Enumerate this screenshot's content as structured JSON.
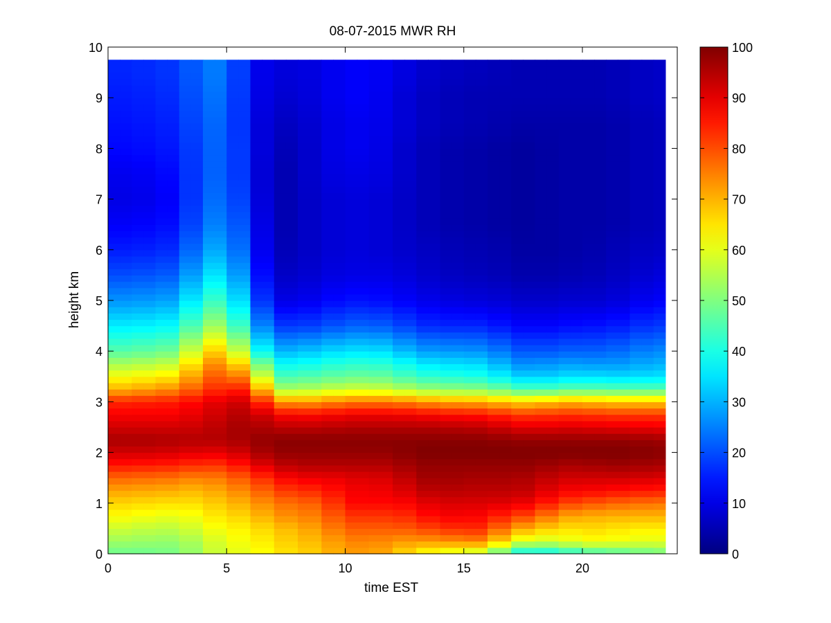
{
  "chart_data": {
    "type": "heatmap",
    "title": "08-07-2015 MWR RH",
    "xlabel": "time EST",
    "ylabel": "height km",
    "xlim": [
      0,
      24
    ],
    "ylim": [
      0,
      10
    ],
    "x_ticks": [
      "0",
      "5",
      "10",
      "15",
      "20"
    ],
    "y_ticks": [
      "0",
      "1",
      "2",
      "3",
      "4",
      "5",
      "6",
      "7",
      "8",
      "9",
      "10"
    ],
    "colorbar": {
      "colormap": "jet",
      "range": [
        0,
        100
      ],
      "ticks": [
        "0",
        "10",
        "20",
        "30",
        "40",
        "50",
        "60",
        "70",
        "80",
        "90",
        "100"
      ]
    },
    "data_extent": {
      "x": [
        0,
        23.5
      ],
      "y": [
        0,
        9.75
      ]
    },
    "time_hours": [
      0,
      1,
      2,
      3,
      4,
      5,
      6,
      7,
      8,
      9,
      10,
      11,
      12,
      13,
      14,
      15,
      16,
      17,
      18,
      19,
      20,
      21,
      22,
      23
    ],
    "height_km": [
      0,
      0.25,
      0.5,
      0.75,
      1,
      1.25,
      1.5,
      1.75,
      2,
      2.25,
      2.5,
      2.75,
      3,
      3.25,
      3.5,
      3.75,
      4,
      4.5,
      5,
      5.5,
      6,
      6.5,
      7,
      7.5,
      8,
      8.5,
      9,
      9.5,
      9.75
    ],
    "rh_profiles": [
      [
        48,
        53,
        58,
        63,
        67,
        72,
        78,
        86,
        92,
        96,
        92,
        88,
        84,
        70,
        62,
        54,
        46,
        36,
        27,
        20,
        15,
        12,
        10,
        11,
        13,
        14,
        15,
        16,
        16
      ],
      [
        48,
        53,
        57,
        62,
        66,
        71,
        77,
        85,
        92,
        96,
        92,
        88,
        84,
        70,
        62,
        54,
        46,
        36,
        27,
        20,
        15,
        12,
        10,
        11,
        13,
        14,
        15,
        16,
        16
      ],
      [
        48,
        52,
        56,
        61,
        66,
        71,
        77,
        85,
        92,
        96,
        92,
        88,
        85,
        73,
        64,
        56,
        48,
        37,
        28,
        21,
        16,
        13,
        11,
        12,
        14,
        15,
        16,
        17,
        17
      ],
      [
        50,
        52,
        56,
        60,
        65,
        70,
        76,
        84,
        91,
        95,
        92,
        88,
        85,
        74,
        65,
        57,
        49,
        38,
        29,
        22,
        17,
        14,
        13,
        14,
        15,
        16,
        17,
        18,
        18
      ],
      [
        54,
        56,
        60,
        63,
        66,
        69,
        74,
        82,
        90,
        95,
        93,
        91,
        89,
        82,
        78,
        73,
        66,
        52,
        42,
        34,
        28,
        24,
        22,
        21,
        21,
        22,
        23,
        24,
        24
      ],
      [
        60,
        61,
        63,
        66,
        69,
        73,
        77,
        83,
        90,
        95,
        95,
        93,
        91,
        84,
        79,
        74,
        68,
        54,
        44,
        36,
        30,
        26,
        24,
        23,
        23,
        23,
        24,
        25,
        25
      ],
      [
        60,
        62,
        64,
        67,
        71,
        75,
        80,
        88,
        94,
        97,
        97,
        96,
        93,
        85,
        72,
        60,
        46,
        33,
        25,
        20,
        17,
        16,
        14,
        13,
        13,
        12,
        12,
        12,
        12
      ],
      [
        64,
        66,
        68,
        73,
        76,
        81,
        86,
        93,
        98,
        99,
        94,
        88,
        74,
        54,
        44,
        38,
        30,
        18,
        10,
        7,
        5,
        4,
        4,
        4,
        5,
        6,
        8,
        9,
        9
      ],
      [
        66,
        68,
        70,
        74,
        77,
        83,
        89,
        95,
        98,
        99,
        94,
        87,
        72,
        54,
        45,
        38,
        31,
        18,
        10,
        7,
        6,
        6,
        6,
        6,
        6,
        7,
        8,
        9,
        9
      ],
      [
        68,
        70,
        73,
        76,
        79,
        84,
        89,
        95,
        98,
        99,
        94,
        87,
        73,
        56,
        46,
        40,
        33,
        19,
        12,
        9,
        8,
        8,
        8,
        9,
        9,
        9,
        10,
        10,
        10
      ],
      [
        72,
        74,
        78,
        82,
        86,
        88,
        90,
        95,
        98,
        99,
        95,
        89,
        76,
        58,
        48,
        42,
        35,
        22,
        14,
        10,
        9,
        9,
        9,
        10,
        11,
        11,
        12,
        12,
        12
      ],
      [
        72,
        75,
        79,
        83,
        88,
        89,
        91,
        95,
        98,
        99,
        95,
        89,
        76,
        58,
        48,
        42,
        35,
        22,
        14,
        10,
        9,
        9,
        9,
        10,
        11,
        11,
        12,
        12,
        12
      ],
      [
        70,
        73,
        78,
        82,
        86,
        89,
        91,
        95,
        98,
        99,
        95,
        89,
        76,
        57,
        47,
        41,
        34,
        21,
        13,
        10,
        8,
        8,
        8,
        9,
        9,
        10,
        10,
        11,
        11
      ],
      [
        62,
        72,
        80,
        85,
        89,
        93,
        96,
        98,
        100,
        99,
        95,
        88,
        74,
        53,
        42,
        36,
        28,
        17,
        11,
        8,
        7,
        6,
        6,
        6,
        6,
        7,
        7,
        8,
        8
      ],
      [
        60,
        73,
        82,
        88,
        91,
        95,
        97,
        98,
        100,
        99,
        95,
        87,
        72,
        52,
        42,
        35,
        28,
        16,
        10,
        7,
        6,
        5,
        5,
        5,
        5,
        6,
        6,
        7,
        7
      ],
      [
        56,
        74,
        84,
        88,
        91,
        94,
        96,
        98,
        100,
        99,
        94,
        86,
        71,
        51,
        40,
        34,
        27,
        16,
        9,
        6,
        5,
        4,
        4,
        4,
        4,
        5,
        5,
        6,
        6
      ],
      [
        55,
        75,
        83,
        87,
        91,
        94,
        96,
        98,
        100,
        99,
        94,
        86,
        71,
        51,
        40,
        34,
        27,
        16,
        9,
        6,
        5,
        4,
        4,
        4,
        4,
        5,
        5,
        6,
        6
      ],
      [
        38,
        60,
        72,
        82,
        90,
        94,
        96,
        98,
        100,
        98,
        91,
        82,
        67,
        46,
        34,
        27,
        22,
        13,
        8,
        5,
        4,
        3,
        3,
        3,
        3,
        4,
        5,
        5,
        5
      ],
      [
        36,
        58,
        70,
        80,
        88,
        93,
        95,
        98,
        100,
        98,
        90,
        82,
        67,
        44,
        32,
        26,
        20,
        12,
        7,
        4,
        3,
        3,
        3,
        3,
        3,
        4,
        5,
        5,
        5
      ],
      [
        38,
        58,
        65,
        72,
        82,
        88,
        92,
        96,
        100,
        98,
        91,
        83,
        70,
        46,
        34,
        28,
        22,
        13,
        8,
        5,
        4,
        4,
        4,
        4,
        4,
        4,
        5,
        5,
        5
      ],
      [
        42,
        62,
        66,
        71,
        80,
        88,
        92,
        96,
        100,
        98,
        91,
        83,
        70,
        47,
        35,
        28,
        22,
        14,
        8,
        5,
        4,
        4,
        4,
        4,
        4,
        4,
        5,
        5,
        5
      ],
      [
        44,
        62,
        66,
        70,
        78,
        87,
        92,
        97,
        100,
        98,
        90,
        82,
        68,
        46,
        34,
        27,
        22,
        14,
        8,
        6,
        5,
        4,
        4,
        4,
        4,
        4,
        5,
        5,
        5
      ],
      [
        46,
        60,
        64,
        70,
        77,
        86,
        92,
        97,
        100,
        98,
        90,
        82,
        68,
        46,
        34,
        28,
        24,
        16,
        10,
        7,
        6,
        5,
        5,
        5,
        5,
        5,
        6,
        6,
        6
      ],
      [
        48,
        60,
        64,
        70,
        76,
        85,
        91,
        96,
        99,
        97,
        89,
        82,
        68,
        46,
        35,
        30,
        26,
        18,
        12,
        9,
        7,
        6,
        6,
        6,
        6,
        6,
        7,
        7,
        7
      ]
    ]
  }
}
